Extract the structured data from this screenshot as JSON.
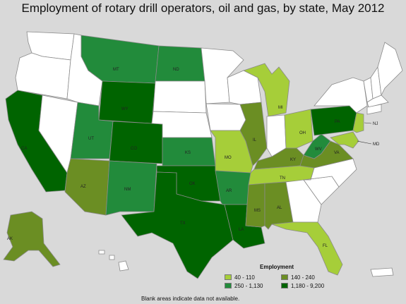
{
  "title": "Employment of rotary drill operators, oil and gas, by state, May 2012",
  "legend": {
    "title": "Employment",
    "classes": [
      {
        "label": "40 - 110",
        "color": "#a6ce39"
      },
      {
        "label": "140 - 240",
        "color": "#6b8e23"
      },
      {
        "label": "250 - 1,130",
        "color": "#228b3b"
      },
      {
        "label": "1,180 - 9,200",
        "color": "#006400"
      }
    ]
  },
  "footnote": "Blank areas indicate data not available.",
  "blank_color": "#ffffff",
  "state_labels": {
    "CA": "CA",
    "AZ": "AZ",
    "AK": "AK",
    "UT": "UT",
    "NM": "NM",
    "MT": "MT",
    "WY": "WY",
    "CO": "CO",
    "ND": "ND",
    "KS": "KS",
    "OK": "OK",
    "TX": "TX",
    "MO": "MO",
    "AR": "AR",
    "LA": "LA",
    "MS": "MS",
    "AL": "AL",
    "FL": "FL",
    "TN": "TN",
    "KY": "KY",
    "IL": "IL",
    "MI": "MI",
    "OH": "OH",
    "WV": "WV",
    "VA": "VA",
    "PA": "PA",
    "NJ": "NJ",
    "MD": "MD"
  },
  "state_classes": {
    "CA": 3,
    "WY": 3,
    "CO": 3,
    "TX": 3,
    "OK": 3,
    "LA": 3,
    "PA": 3,
    "MT": 2,
    "ND": 2,
    "UT": 2,
    "NM": 2,
    "KS": 2,
    "AR": 2,
    "WV": 2,
    "AZ": 1,
    "AK": 1,
    "IL": 1,
    "KY": 1,
    "VA": 1,
    "MS": 1,
    "AL": 1,
    "MO": 0,
    "MI": 0,
    "OH": 0,
    "TN": 0,
    "FL": 0,
    "NJ": 0,
    "MD": 0
  }
}
